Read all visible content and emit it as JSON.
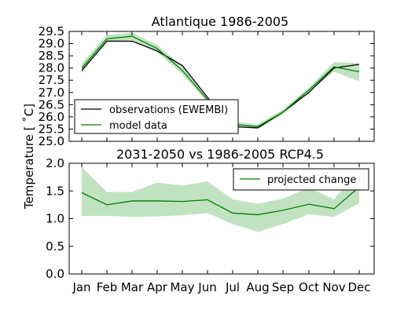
{
  "chart_data": [
    {
      "type": "line",
      "title": "Atlantique 1986-2005",
      "xlabel": "",
      "ylabel": "",
      "ylim": [
        25.0,
        29.5
      ],
      "yticks": [
        "25.0",
        "25.5",
        "26.0",
        "26.5",
        "27.0",
        "27.5",
        "28.0",
        "28.5",
        "29.0",
        "29.5"
      ],
      "categories": [
        "Jan",
        "Feb",
        "Mar",
        "Apr",
        "May",
        "Jun",
        "Jul",
        "Aug",
        "Sep",
        "Oct",
        "Nov",
        "Dec"
      ],
      "legend_position": "bottom-left",
      "series": [
        {
          "name": "observations (EWEMBI)",
          "color": "#000000",
          "values": [
            27.9,
            29.1,
            29.1,
            28.7,
            28.1,
            26.8,
            25.6,
            25.55,
            26.2,
            27.0,
            28.0,
            28.15
          ]
        },
        {
          "name": "model data",
          "color": "#008000",
          "values": [
            28.0,
            29.2,
            29.3,
            28.8,
            27.9,
            26.7,
            25.7,
            25.6,
            26.2,
            27.1,
            28.05,
            27.85
          ],
          "band_low": [
            27.8,
            29.1,
            29.15,
            28.65,
            27.75,
            26.6,
            25.6,
            25.5,
            26.1,
            27.0,
            27.85,
            27.45
          ],
          "band_high": [
            28.2,
            29.35,
            29.45,
            28.95,
            28.05,
            26.8,
            25.8,
            25.7,
            26.3,
            27.2,
            28.25,
            28.2
          ]
        }
      ]
    },
    {
      "type": "line",
      "title": "2031-2050 vs 1986-2005 RCP4.5",
      "xlabel": "",
      "ylabel": "",
      "ylim": [
        0.0,
        2.0
      ],
      "yticks": [
        "0.0",
        "0.5",
        "1.0",
        "1.5",
        "2.0"
      ],
      "categories": [
        "Jan",
        "Feb",
        "Mar",
        "Apr",
        "May",
        "Jun",
        "Jul",
        "Aug",
        "Sep",
        "Oct",
        "Nov",
        "Dec"
      ],
      "legend_position": "top-right",
      "series": [
        {
          "name": "projected change",
          "color": "#008000",
          "values": [
            1.47,
            1.25,
            1.32,
            1.32,
            1.31,
            1.34,
            1.1,
            1.07,
            1.15,
            1.26,
            1.18,
            1.57
          ],
          "band_low": [
            1.05,
            1.05,
            1.03,
            1.04,
            1.06,
            1.1,
            0.9,
            0.76,
            0.9,
            1.08,
            1.03,
            1.28
          ],
          "band_high": [
            1.93,
            1.48,
            1.48,
            1.65,
            1.6,
            1.67,
            1.35,
            1.27,
            1.36,
            1.56,
            1.35,
            1.92
          ]
        }
      ]
    }
  ],
  "shared_ylabel": "Temperature [$^\\circ C$]",
  "shared_ylabel_display": "Temperature [ ˚C]",
  "band_color": "#98d098"
}
